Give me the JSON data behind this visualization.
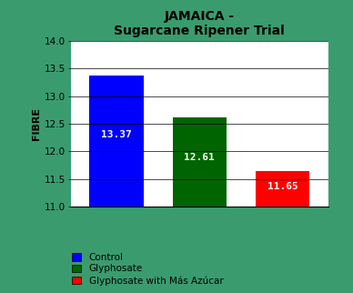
{
  "title_line1": "JAMAICA -",
  "title_line2": "Sugarcane Ripener Trial",
  "categories": [
    "Control",
    "Glyphosate",
    "Glyphosate with Más Azúcar"
  ],
  "values": [
    13.37,
    12.61,
    11.65
  ],
  "bar_colors": [
    "#0000FF",
    "#006400",
    "#FF0000"
  ],
  "ylabel": "FIBRE",
  "ylim": [
    11.0,
    14.0
  ],
  "yticks": [
    11.0,
    11.5,
    12.0,
    12.5,
    13.0,
    13.5,
    14.0
  ],
  "bar_label_color": "white",
  "bar_label_fontsize": 8,
  "background_color": "#3a9c6e",
  "plot_bg_color": "#FFFFFF",
  "title_fontsize": 10,
  "ylabel_fontsize": 8,
  "legend_fontsize": 7.5,
  "bar_width": 0.65,
  "label_text_fontfamily": "monospace"
}
